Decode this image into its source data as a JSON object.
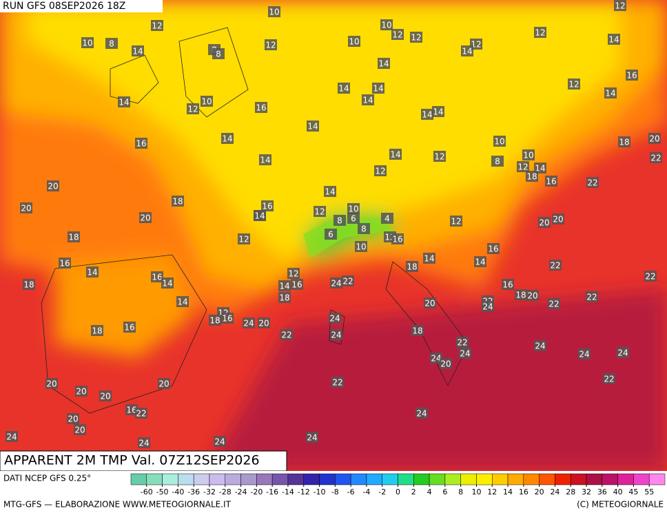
{
  "header": {
    "title": "RUN GFS 08SEP2026 18Z"
  },
  "map": {
    "caption": "APPARENT 2M TMP Val. 07Z12SEP2026",
    "labels": [
      10,
      12,
      12,
      10,
      12,
      12,
      12,
      10,
      8,
      14,
      8,
      8,
      12,
      10,
      12,
      14,
      14,
      14,
      16,
      14,
      14,
      12,
      14,
      14,
      14,
      10,
      12,
      14,
      16,
      14,
      14,
      14,
      14,
      16,
      10,
      18,
      20,
      14,
      14,
      12,
      10,
      8,
      12,
      14,
      22,
      12,
      18,
      16,
      22,
      20,
      14,
      18,
      16,
      14,
      12,
      10,
      20,
      20,
      6,
      4,
      8,
      8,
      12,
      20,
      20,
      12,
      18,
      6,
      10,
      12,
      16,
      16,
      16,
      14,
      18,
      14,
      14,
      22,
      18,
      16,
      14,
      12,
      14,
      16,
      24,
      22,
      22,
      16,
      18,
      14,
      20,
      22,
      24,
      18,
      20,
      22,
      22,
      12,
      18,
      16,
      24,
      20,
      24,
      16,
      18,
      22,
      24,
      18,
      22,
      24,
      24,
      24,
      24,
      24,
      20,
      20,
      20,
      22,
      22,
      20,
      20,
      16,
      22,
      24,
      20,
      20,
      24,
      24,
      24,
      24
    ]
  },
  "colorbar": {
    "colors": [
      "#66ccaa",
      "#88ddbb",
      "#aaeedd",
      "#bbddee",
      "#ccccee",
      "#ccbbee",
      "#bbaadd",
      "#aa99cc",
      "#9977bb",
      "#7755aa",
      "#553399",
      "#3322aa",
      "#2233cc",
      "#2255ee",
      "#2288ff",
      "#22aaff",
      "#22ccee",
      "#22dd88",
      "#22cc22",
      "#66dd22",
      "#aaee22",
      "#eeee00",
      "#ffee00",
      "#ffcc00",
      "#ffaa00",
      "#ff8800",
      "#ff5500",
      "#ee2200",
      "#cc1122",
      "#aa1144",
      "#bb1166",
      "#dd2299",
      "#ee44cc",
      "#ff88ee"
    ],
    "ticks": [
      -60,
      -50,
      -40,
      -36,
      -32,
      -28,
      -24,
      -20,
      -16,
      -14,
      -12,
      -10,
      -8,
      -6,
      -4,
      -2,
      0,
      2,
      4,
      6,
      8,
      10,
      12,
      14,
      16,
      20,
      24,
      28,
      32,
      36,
      40,
      45,
      55
    ]
  },
  "footer": {
    "source": "DATI NCEP GFS 0.25°",
    "credit": "MTG-GFS — ELABORAZIONE WWW.METEOGIORNALE.IT",
    "copyright": "(C) METEOGIORNALE"
  }
}
